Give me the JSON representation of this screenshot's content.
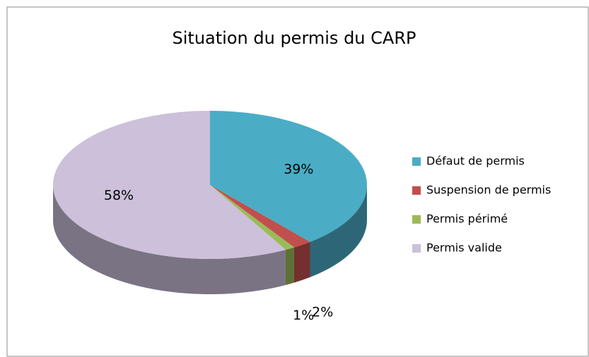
{
  "chart_data": {
    "type": "pie",
    "title": "Situation du permis du CARP",
    "categories": [
      "Défaut de permis",
      "Suspension de permis",
      "Permis périmé",
      "Permis valide"
    ],
    "values": [
      39,
      2,
      1,
      58
    ],
    "value_labels": [
      "39%",
      "2%",
      "1%",
      "58%"
    ],
    "colors": [
      "#4bacc6",
      "#c0504d",
      "#9bbb59",
      "#ccc0da"
    ],
    "legend": "right"
  }
}
